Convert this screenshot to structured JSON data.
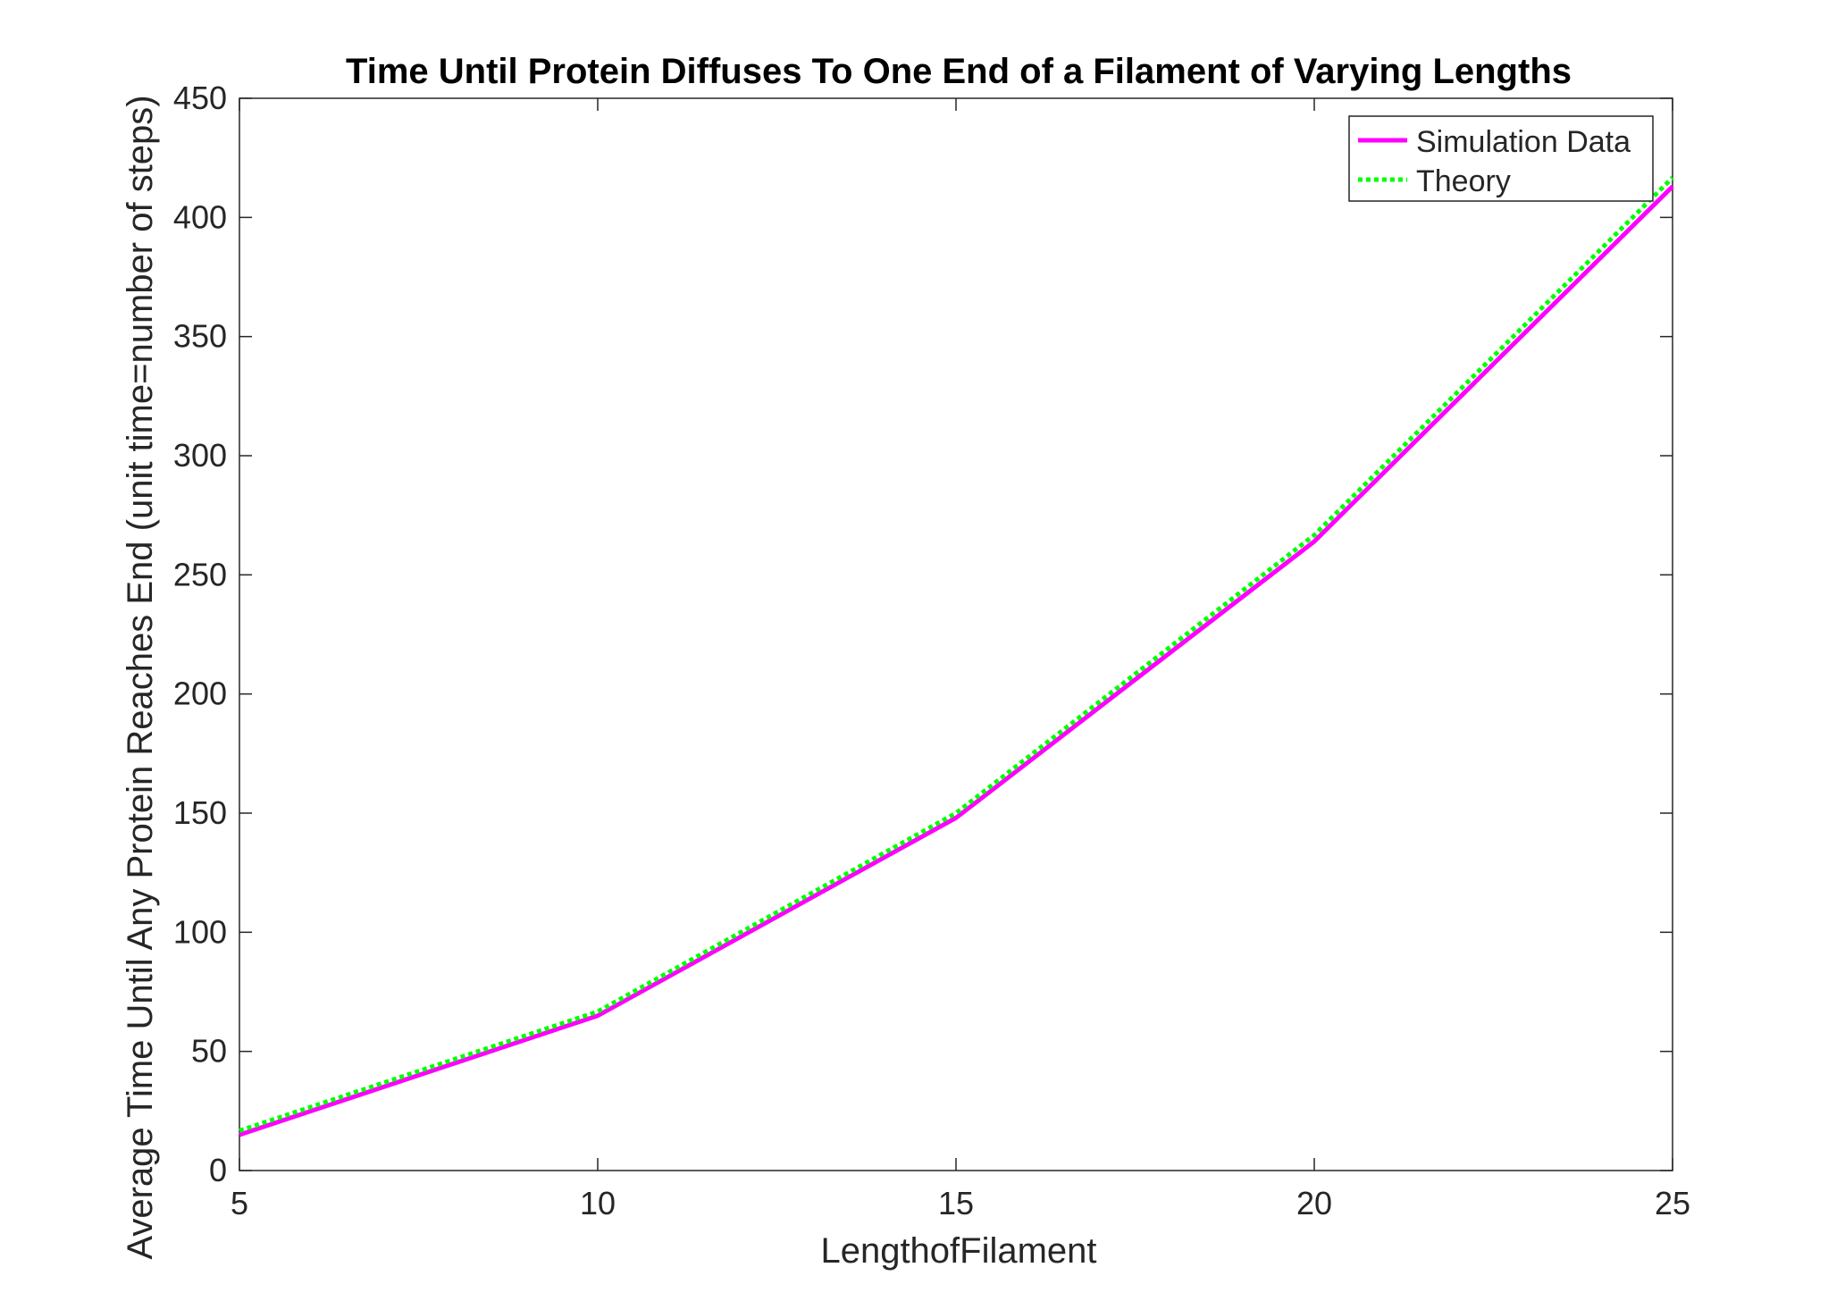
{
  "chart_data": {
    "type": "line",
    "title": "Time Until Protein Diffuses To One End of a Filament of Varying Lengths",
    "xlabel": "LengthofFilament",
    "ylabel": "Average Time Until Any Protein Reaches End (unit time=number of steps)",
    "xlim": [
      5,
      25
    ],
    "ylim": [
      0,
      450
    ],
    "x_ticks": [
      5,
      10,
      15,
      20,
      25
    ],
    "y_ticks": [
      0,
      50,
      100,
      150,
      200,
      250,
      300,
      350,
      400,
      450
    ],
    "grid": false,
    "legend_position": "top-right",
    "x": [
      5,
      10,
      15,
      20,
      25
    ],
    "series": [
      {
        "name": "Simulation Data",
        "values": [
          15,
          65,
          148,
          264,
          413
        ],
        "color": "#ff00ff",
        "style": "solid"
      },
      {
        "name": "Theory",
        "values": [
          16.7,
          66.7,
          150,
          266.7,
          416.7
        ],
        "color": "#00ff00",
        "style": "dotted"
      }
    ]
  }
}
